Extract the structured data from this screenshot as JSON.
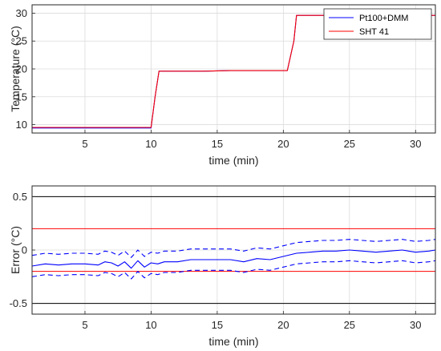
{
  "chart_data": [
    {
      "type": "line",
      "xlabel": "time (min)",
      "ylabel": "Temperature (°C)",
      "xlim": [
        1,
        31.5
      ],
      "ylim": [
        8.5,
        31.5
      ],
      "xticks": [
        5,
        10,
        15,
        20,
        25,
        30
      ],
      "yticks": [
        10,
        15,
        20,
        25,
        30
      ],
      "grid": true,
      "legend": "top-right",
      "series": [
        {
          "name": "Pt100+DMM",
          "color": "#0000ff",
          "style": "solid",
          "x": [
            1,
            2,
            3,
            4,
            5,
            6,
            7,
            8,
            9,
            10,
            10.3,
            10.6,
            12,
            14,
            16,
            18,
            20,
            20.3,
            20.8,
            21,
            22,
            24,
            26,
            28,
            30,
            31.5
          ],
          "y": [
            9.4,
            9.4,
            9.4,
            9.4,
            9.4,
            9.4,
            9.4,
            9.4,
            9.4,
            9.4,
            15,
            19.6,
            19.6,
            19.6,
            19.7,
            19.7,
            19.7,
            19.7,
            25,
            29.6,
            29.6,
            29.6,
            29.6,
            29.6,
            29.6,
            29.6
          ]
        },
        {
          "name": "SHT 41",
          "color": "#ff0000",
          "style": "solid",
          "x": [
            1,
            2,
            3,
            4,
            5,
            6,
            7,
            8,
            9,
            10,
            10.3,
            10.6,
            12,
            14,
            16,
            18,
            20,
            20.3,
            20.8,
            21,
            22,
            24,
            26,
            28,
            30,
            31.5
          ],
          "y": [
            9.5,
            9.5,
            9.5,
            9.5,
            9.5,
            9.5,
            9.5,
            9.5,
            9.5,
            9.5,
            15,
            19.6,
            19.6,
            19.6,
            19.7,
            19.7,
            19.7,
            19.7,
            25,
            29.6,
            29.6,
            29.6,
            29.6,
            29.6,
            29.6,
            29.6
          ]
        }
      ]
    },
    {
      "type": "line",
      "xlabel": "time (min)",
      "ylabel": "Error (°C)",
      "xlim": [
        1,
        31.5
      ],
      "ylim": [
        -0.6,
        0.6
      ],
      "xticks": [
        5,
        10,
        15,
        20,
        25,
        30
      ],
      "yticks": [
        -0.5,
        0,
        0.5
      ],
      "yticklabels": [
        "-0.5",
        "0",
        "0.5"
      ],
      "grid": true,
      "reference_lines": [
        {
          "y": 0.5,
          "color": "#000000"
        },
        {
          "y": -0.5,
          "color": "#000000"
        },
        {
          "y": 0.2,
          "color": "#ff0000"
        },
        {
          "y": -0.2,
          "color": "#ff0000"
        }
      ],
      "series": [
        {
          "color": "#0000ff",
          "style": "solid",
          "x": [
            1,
            2,
            3,
            4,
            5,
            6,
            6.5,
            7,
            7.5,
            8,
            8.5,
            9,
            9.5,
            10,
            10.5,
            11,
            12,
            13,
            14,
            15,
            16,
            17,
            18,
            19,
            20,
            21,
            22,
            23,
            24,
            25,
            26,
            27,
            28,
            29,
            30,
            31,
            31.5
          ],
          "y": [
            -0.15,
            -0.13,
            -0.14,
            -0.13,
            -0.13,
            -0.14,
            -0.11,
            -0.12,
            -0.15,
            -0.11,
            -0.17,
            -0.1,
            -0.16,
            -0.12,
            -0.13,
            -0.11,
            -0.11,
            -0.09,
            -0.09,
            -0.09,
            -0.09,
            -0.11,
            -0.08,
            -0.09,
            -0.06,
            -0.03,
            -0.02,
            -0.01,
            -0.01,
            0,
            -0.01,
            -0.02,
            -0.01,
            0,
            -0.02,
            -0.01,
            0
          ]
        },
        {
          "color": "#0000ff",
          "style": "dashed",
          "x": [
            1,
            2,
            3,
            4,
            5,
            6,
            6.5,
            7,
            7.5,
            8,
            8.5,
            9,
            9.5,
            10,
            10.5,
            11,
            12,
            13,
            14,
            15,
            16,
            17,
            18,
            19,
            20,
            21,
            22,
            23,
            24,
            25,
            26,
            27,
            28,
            29,
            30,
            31,
            31.5
          ],
          "y": [
            -0.05,
            -0.03,
            -0.04,
            -0.03,
            -0.03,
            -0.04,
            -0.01,
            -0.02,
            -0.05,
            -0.01,
            -0.07,
            0,
            -0.06,
            -0.02,
            -0.03,
            -0.01,
            -0.01,
            0.01,
            0.01,
            0.01,
            0.01,
            -0.01,
            0.02,
            0.01,
            0.04,
            0.07,
            0.08,
            0.09,
            0.09,
            0.1,
            0.09,
            0.08,
            0.09,
            0.1,
            0.08,
            0.09,
            0.1
          ]
        },
        {
          "color": "#0000ff",
          "style": "dashed",
          "x": [
            1,
            2,
            3,
            4,
            5,
            6,
            6.5,
            7,
            7.5,
            8,
            8.5,
            9,
            9.5,
            10,
            10.5,
            11,
            12,
            13,
            14,
            15,
            16,
            17,
            18,
            19,
            20,
            21,
            22,
            23,
            24,
            25,
            26,
            27,
            28,
            29,
            30,
            31,
            31.5
          ],
          "y": [
            -0.25,
            -0.23,
            -0.24,
            -0.23,
            -0.23,
            -0.24,
            -0.21,
            -0.22,
            -0.25,
            -0.21,
            -0.27,
            -0.2,
            -0.26,
            -0.22,
            -0.23,
            -0.21,
            -0.21,
            -0.19,
            -0.19,
            -0.19,
            -0.19,
            -0.21,
            -0.18,
            -0.19,
            -0.16,
            -0.13,
            -0.12,
            -0.11,
            -0.11,
            -0.1,
            -0.11,
            -0.12,
            -0.11,
            -0.1,
            -0.12,
            -0.11,
            -0.1
          ]
        }
      ]
    }
  ]
}
